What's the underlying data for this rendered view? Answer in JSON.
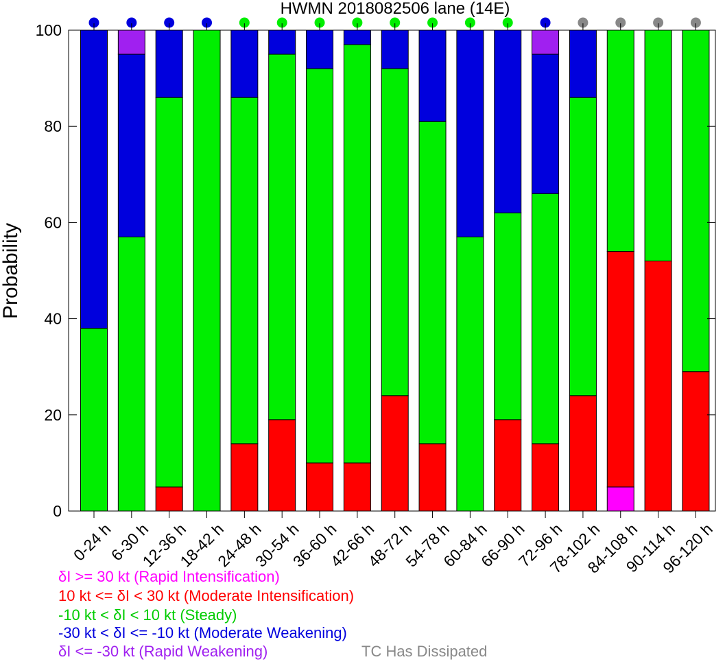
{
  "chart_data": {
    "type": "bar",
    "stacked": true,
    "title": "HWMN 2018082506 lane (14E)",
    "xlabel": "",
    "ylabel": "Probability",
    "ylim": [
      0,
      100
    ],
    "yticks": [
      "0",
      "20",
      "40",
      "60",
      "80",
      "100"
    ],
    "grid": false,
    "categories": [
      "0-24 h",
      "6-30 h",
      "12-36 h",
      "18-42 h",
      "24-48 h",
      "30-54 h",
      "36-60 h",
      "42-66 h",
      "48-72 h",
      "54-78 h",
      "60-84 h",
      "66-90 h",
      "72-96 h",
      "78-102 h",
      "84-108 h",
      "90-114 h",
      "96-120 h"
    ],
    "series": [
      {
        "key": "rapid_intensification",
        "color": "#ff00ff",
        "values": [
          0,
          0,
          0,
          0,
          0,
          0,
          0,
          0,
          0,
          0,
          0,
          0,
          0,
          0,
          5,
          0,
          0
        ]
      },
      {
        "key": "moderate_intensification",
        "color": "#ff0000",
        "values": [
          0,
          0,
          5,
          0,
          14,
          19,
          10,
          10,
          24,
          14,
          0,
          19,
          14,
          24,
          49,
          52,
          29
        ]
      },
      {
        "key": "steady",
        "color": "#00ee00",
        "values": [
          38,
          57,
          81,
          100,
          72,
          76,
          82,
          87,
          68,
          67,
          57,
          43,
          52,
          62,
          46,
          48,
          71
        ]
      },
      {
        "key": "moderate_weakening",
        "color": "#0000dd",
        "values": [
          62,
          38,
          14,
          0,
          14,
          5,
          8,
          3,
          8,
          19,
          43,
          38,
          29,
          14,
          0,
          0,
          0
        ]
      },
      {
        "key": "rapid_weakening",
        "color": "#a020f0",
        "values": [
          0,
          5,
          0,
          0,
          0,
          0,
          0,
          0,
          0,
          0,
          0,
          0,
          5,
          0,
          0,
          0,
          0
        ]
      }
    ],
    "status_dots": [
      "blue",
      "blue",
      "blue",
      "blue",
      "green",
      "green",
      "green",
      "green",
      "green",
      "green",
      "green",
      "green",
      "blue",
      "gray",
      "gray",
      "gray",
      "gray"
    ],
    "status_colors": {
      "blue": "#0000dd",
      "green": "#00ee00",
      "gray": "#888888"
    },
    "legend": [
      {
        "text": "δI >= 30 kt (Rapid Intensification)",
        "color": "#ff00ff"
      },
      {
        "text": "10 kt <= δI < 30 kt (Moderate Intensification)",
        "color": "#ff0000"
      },
      {
        "text": "-10 kt < δI < 10 kt (Steady)",
        "color": "#00cc00"
      },
      {
        "text": "-30 kt < δI <= -10 kt (Moderate Weakening)",
        "color": "#0000dd"
      },
      {
        "text": "δI <= -30 kt (Rapid Weakening)",
        "color": "#a020f0"
      }
    ],
    "dissipated_label": {
      "text": "TC Has Dissipated",
      "color": "#888888"
    }
  }
}
